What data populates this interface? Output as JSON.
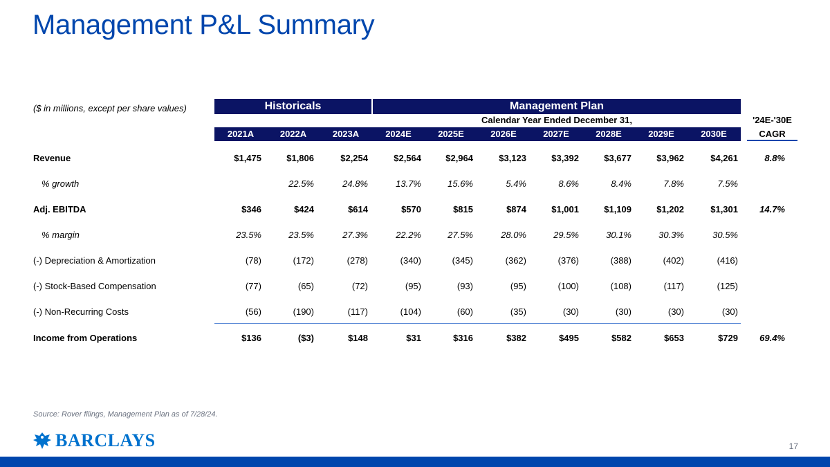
{
  "title": "Management P&L Summary",
  "units_note": "($ in millions, except per share values)",
  "headers": {
    "historicals": "Historicals",
    "management_plan": "Management Plan",
    "calendar_year": "Calendar Year Ended December 31,",
    "cagr_top": "'24E-'30E",
    "cagr_bottom": "CAGR"
  },
  "years": [
    "2021A",
    "2022A",
    "2023A",
    "2024E",
    "2025E",
    "2026E",
    "2027E",
    "2028E",
    "2029E",
    "2030E"
  ],
  "rows": [
    {
      "label": "Revenue",
      "values": [
        "$1,475",
        "$1,806",
        "$2,254",
        "$2,564",
        "$2,964",
        "$3,123",
        "$3,392",
        "$3,677",
        "$3,962",
        "$4,261"
      ],
      "cagr": "8.8%"
    },
    {
      "label": "% growth",
      "values": [
        "",
        "22.5%",
        "24.8%",
        "13.7%",
        "15.6%",
        "5.4%",
        "8.6%",
        "8.4%",
        "7.8%",
        "7.5%"
      ],
      "cagr": ""
    },
    {
      "label": "Adj. EBITDA",
      "values": [
        "$346",
        "$424",
        "$614",
        "$570",
        "$815",
        "$874",
        "$1,001",
        "$1,109",
        "$1,202",
        "$1,301"
      ],
      "cagr": "14.7%"
    },
    {
      "label": "% margin",
      "values": [
        "23.5%",
        "23.5%",
        "27.3%",
        "22.2%",
        "27.5%",
        "28.0%",
        "29.5%",
        "30.1%",
        "30.3%",
        "30.5%"
      ],
      "cagr": ""
    },
    {
      "label": "(-) Depreciation & Amortization",
      "values": [
        "(78)",
        "(172)",
        "(278)",
        "(340)",
        "(345)",
        "(362)",
        "(376)",
        "(388)",
        "(402)",
        "(416)"
      ],
      "cagr": ""
    },
    {
      "label": "(-) Stock-Based Compensation",
      "values": [
        "(77)",
        "(65)",
        "(72)",
        "(95)",
        "(93)",
        "(95)",
        "(100)",
        "(108)",
        "(117)",
        "(125)"
      ],
      "cagr": ""
    },
    {
      "label": "(-) Non-Recurring Costs",
      "values": [
        "(56)",
        "(190)",
        "(117)",
        "(104)",
        "(60)",
        "(35)",
        "(30)",
        "(30)",
        "(30)",
        "(30)"
      ],
      "cagr": ""
    },
    {
      "label": "Income from Operations",
      "values": [
        "$136",
        "($3)",
        "$148",
        "$31",
        "$316",
        "$382",
        "$495",
        "$582",
        "$653",
        "$729"
      ],
      "cagr": "69.4%"
    }
  ],
  "source": "Source: Rover filings, Management Plan as of 7/28/24.",
  "logo": {
    "text": "BARCLAYS",
    "icon": "eagle-icon",
    "color": "#0072ce"
  },
  "page_number": "17",
  "colors": {
    "title": "#0046ad",
    "header_fill": "#0b1464",
    "footer_bar": "#0046ad"
  }
}
